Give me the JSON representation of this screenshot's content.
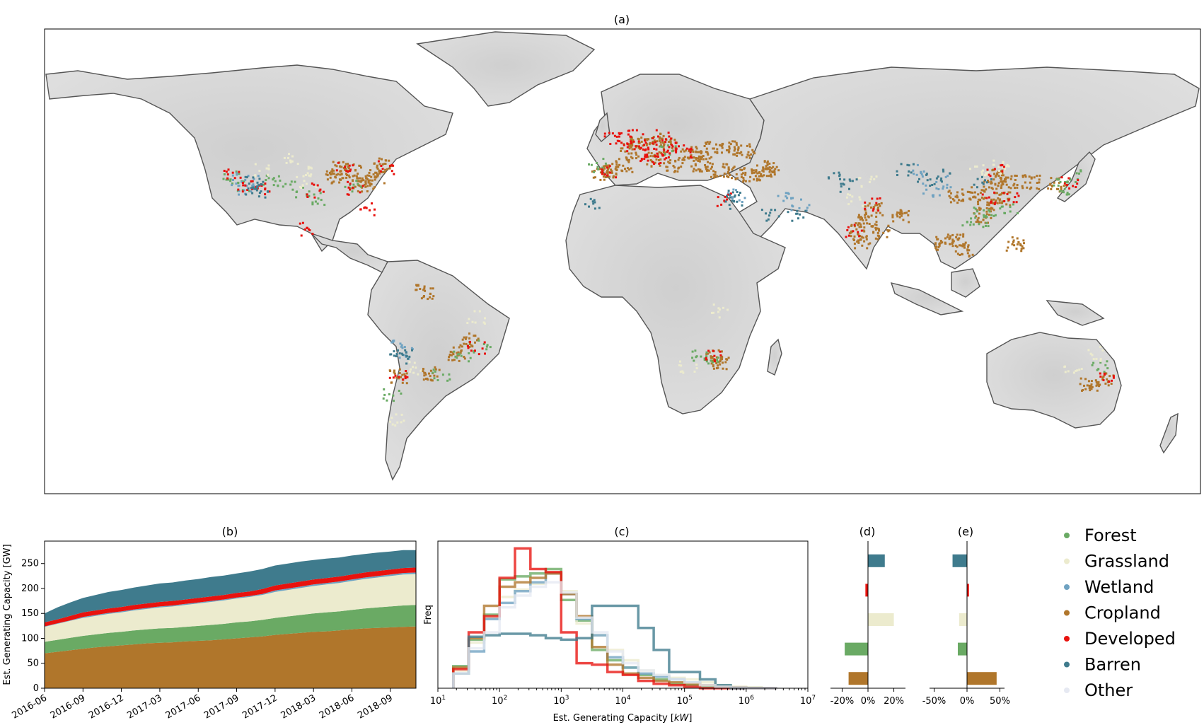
{
  "chart_data": [
    {
      "id": "a",
      "type": "map",
      "title": "(a)",
      "legend_ref": "legend",
      "region_points": {
        "Cropland": [
          [
            -77,
            38
          ],
          [
            -80,
            36
          ],
          [
            -84,
            40
          ],
          [
            -88,
            41
          ],
          [
            -75,
            42
          ],
          [
            -82,
            35
          ],
          [
            -90,
            38
          ],
          [
            2,
            47
          ],
          [
            5,
            50
          ],
          [
            10,
            51
          ],
          [
            14,
            49
          ],
          [
            20,
            46
          ],
          [
            25,
            45
          ],
          [
            0,
            42
          ],
          [
            -4,
            40
          ],
          [
            -7,
            39
          ],
          [
            10,
            44
          ],
          [
            16,
            42
          ],
          [
            24,
            42
          ],
          [
            30,
            40
          ],
          [
            35,
            39
          ],
          [
            40,
            38
          ],
          [
            28,
            48
          ],
          [
            33,
            48
          ],
          [
            38,
            47
          ],
          [
            76,
            22
          ],
          [
            78,
            26
          ],
          [
            80,
            18
          ],
          [
            74,
            15
          ],
          [
            86,
            24
          ],
          [
            73,
            19
          ],
          [
            115,
            34
          ],
          [
            113,
            28
          ],
          [
            118,
            30
          ],
          [
            110,
            32
          ],
          [
            112,
            24
          ],
          [
            120,
            36
          ],
          [
            117,
            38
          ],
          [
            104,
            31
          ],
          [
            100,
            14
          ],
          [
            103,
            15
          ],
          [
            106,
            12
          ],
          [
            122,
            14
          ],
          [
            127,
            36
          ],
          [
            135,
            35
          ],
          [
            -48,
            -20
          ],
          [
            -52,
            -25
          ],
          [
            -60,
            -32
          ],
          [
            -70,
            -33
          ],
          [
            28,
            -26
          ],
          [
            30,
            -28
          ],
          [
            145,
            -36
          ],
          [
            150,
            -34
          ],
          [
            -62,
            -3
          ],
          [
            46,
            41
          ],
          [
            44,
            40
          ]
        ],
        "Forest": [
          [
            -122,
            38
          ],
          [
            -118,
            34
          ],
          [
            -110,
            36
          ],
          [
            -105,
            35
          ],
          [
            -100,
            32
          ],
          [
            -95,
            30
          ],
          [
            -84,
            35
          ],
          [
            137,
            36
          ],
          [
            140,
            38
          ],
          [
            136,
            34
          ],
          [
            112,
            26
          ],
          [
            114,
            22
          ],
          [
            108,
            22
          ],
          [
            120,
            27
          ],
          [
            14,
            47
          ],
          [
            -8,
            42
          ],
          [
            27,
            -28
          ],
          [
            24,
            -26
          ],
          [
            -44,
            -22
          ],
          [
            -50,
            -26
          ],
          [
            148,
            -30
          ],
          [
            -57,
            -33
          ],
          [
            -72,
            -40
          ]
        ],
        "Grassland": [
          [
            -100,
            40
          ],
          [
            -104,
            44
          ],
          [
            -98,
            36
          ],
          [
            -112,
            40
          ],
          [
            115,
            40
          ],
          [
            118,
            42
          ],
          [
            110,
            40
          ],
          [
            76,
            36
          ],
          [
            72,
            30
          ],
          [
            -64,
            -30
          ],
          [
            -70,
            -48
          ],
          [
            20,
            -30
          ],
          [
            140,
            -30
          ],
          [
            147,
            -25
          ],
          [
            30,
            -10
          ],
          [
            -46,
            -12
          ]
        ],
        "Wetland": [
          [
            -115,
            36
          ],
          [
            -120,
            37
          ],
          [
            -118,
            34
          ],
          [
            100,
            36
          ],
          [
            96,
            33
          ],
          [
            92,
            40
          ],
          [
            -70,
            -22
          ],
          [
            -68,
            -25
          ],
          [
            35,
            31
          ],
          [
            55,
            28
          ],
          [
            50,
            30
          ]
        ],
        "Developed": [
          [
            -74,
            41
          ],
          [
            -87,
            42
          ],
          [
            -122,
            38
          ],
          [
            -118,
            34
          ],
          [
            -96,
            33
          ],
          [
            -80,
            26
          ],
          [
            -84,
            34
          ],
          [
            2,
            49
          ],
          [
            8,
            50
          ],
          [
            12,
            52
          ],
          [
            -3,
            52
          ],
          [
            0,
            51
          ],
          [
            6,
            46
          ],
          [
            14,
            46
          ],
          [
            16,
            48
          ],
          [
            19,
            47
          ],
          [
            4,
            52
          ],
          [
            9,
            46
          ],
          [
            12,
            45
          ],
          [
            -4,
            40
          ],
          [
            139,
            36
          ],
          [
            121,
            31
          ],
          [
            114,
            30
          ],
          [
            116,
            40
          ],
          [
            78,
            28
          ],
          [
            72,
            19
          ],
          [
            28,
            -26
          ],
          [
            -70,
            -33
          ],
          [
            -46,
            -23
          ],
          [
            31,
            30
          ],
          [
            151,
            -34
          ],
          [
            -99,
            19
          ],
          [
            -112,
            34
          ]
        ],
        "Barren": [
          [
            -115,
            34
          ],
          [
            -112,
            33
          ],
          [
            -116,
            36
          ],
          [
            34,
            31
          ],
          [
            35,
            29
          ],
          [
            88,
            40
          ],
          [
            94,
            37
          ],
          [
            100,
            38
          ],
          [
            112,
            36
          ],
          [
            54,
            24
          ],
          [
            46,
            24
          ],
          [
            -70,
            -24
          ],
          [
            -68,
            -26
          ],
          [
            -10,
            28
          ],
          [
            70,
            35
          ],
          [
            66,
            37
          ]
        ]
      }
    },
    {
      "id": "b",
      "type": "area",
      "title": "(b)",
      "ylabel": "Est. Generating Capacity [GW]",
      "xlabel": "",
      "x_ticks": [
        "2016-06",
        "2016-09",
        "2016-12",
        "2017-03",
        "2017-06",
        "2017-09",
        "2017-12",
        "2018-03",
        "2018-06",
        "2018-09"
      ],
      "x_months": [
        0,
        3,
        6,
        9,
        12,
        15,
        18,
        21,
        24,
        27
      ],
      "xlim_months": [
        0,
        29
      ],
      "ylim": [
        0,
        295
      ],
      "y_ticks": [
        0,
        50,
        100,
        150,
        200,
        250
      ],
      "x": [
        0,
        1,
        2,
        3,
        4,
        5,
        6,
        7,
        8,
        9,
        10,
        11,
        12,
        13,
        14,
        15,
        16,
        17,
        18,
        19,
        20,
        21,
        22,
        23,
        24,
        25,
        26,
        27,
        28,
        29
      ],
      "series": [
        {
          "name": "Cropland",
          "values": [
            70,
            73,
            76,
            79,
            82,
            84,
            86,
            88,
            90,
            91,
            92,
            94,
            95,
            96,
            98,
            100,
            102,
            104,
            107,
            109,
            111,
            113,
            114,
            116,
            118,
            120,
            121,
            122,
            123,
            124
          ]
        },
        {
          "name": "Forest",
          "values": [
            23,
            24,
            25,
            26,
            26,
            27,
            27,
            28,
            28,
            29,
            29,
            29,
            30,
            31,
            31,
            32,
            32,
            33,
            34,
            35,
            36,
            37,
            38,
            38,
            39,
            40,
            41,
            42,
            43,
            43
          ]
        },
        {
          "name": "Grassland",
          "values": [
            30,
            32,
            34,
            36,
            37,
            38,
            39,
            40,
            41,
            42,
            43,
            44,
            45,
            46,
            47,
            48,
            49,
            50,
            52,
            53,
            54,
            55,
            56,
            57,
            58,
            59,
            60,
            61,
            62,
            62
          ]
        },
        {
          "name": "Wetland",
          "values": [
            1,
            1,
            1,
            2,
            2,
            2,
            2,
            2,
            2,
            2,
            2,
            2,
            2,
            2,
            2,
            2,
            2,
            2,
            3,
            3,
            3,
            3,
            3,
            3,
            3,
            3,
            3,
            3,
            3,
            3
          ]
        },
        {
          "name": "Developed",
          "values": [
            8,
            8,
            9,
            9,
            9,
            9,
            9,
            9,
            9,
            9,
            9,
            9,
            9,
            9,
            9,
            9,
            9,
            10,
            10,
            10,
            10,
            10,
            10,
            10,
            10,
            10,
            10,
            10,
            10,
            10
          ]
        },
        {
          "name": "Barren",
          "values": [
            18,
            24,
            27,
            29,
            31,
            33,
            34,
            35,
            36,
            37,
            37,
            38,
            38,
            39,
            39,
            39,
            40,
            40,
            40,
            40,
            40,
            39,
            39,
            38,
            38,
            37,
            37,
            36,
            36,
            35
          ]
        }
      ]
    },
    {
      "id": "c",
      "type": "histogram",
      "title": "(c)",
      "ylabel": "Freq",
      "xlabel": "Est. Generating Capacity [",
      "xlabel_unit": "kW",
      "xlabel_end": "]",
      "xscale": "log",
      "xlim_exp": [
        1,
        7
      ],
      "x_tick_exps": [
        "1",
        "2",
        "3",
        "4",
        "5",
        "6",
        "7"
      ],
      "x_tick_base": "10",
      "bins_exp": [
        1.25,
        1.5,
        1.75,
        2.0,
        2.25,
        2.5,
        2.75,
        3.0,
        3.25,
        3.5,
        3.75,
        4.0,
        4.25,
        4.5,
        4.75,
        5.0,
        5.25,
        5.5,
        5.75,
        6.0,
        6.25,
        6.5
      ],
      "ylim": [
        0,
        1.0
      ],
      "series": [
        {
          "name": "Forest",
          "values": [
            0.15,
            0.33,
            0.5,
            0.74,
            0.76,
            0.78,
            0.81,
            0.6,
            0.46,
            0.26,
            0.19,
            0.14,
            0.09,
            0.06,
            0.03,
            0.02,
            0.015,
            0.01,
            0.005,
            0.003,
            0.0
          ]
        },
        {
          "name": "Grassland",
          "values": [
            0.12,
            0.31,
            0.48,
            0.62,
            0.67,
            0.71,
            0.78,
            0.66,
            0.44,
            0.36,
            0.26,
            0.19,
            0.12,
            0.09,
            0.07,
            0.06,
            0.04,
            0.02,
            0.01,
            0.005,
            0.0
          ]
        },
        {
          "name": "Wetland",
          "values": [
            0.1,
            0.25,
            0.47,
            0.58,
            0.66,
            0.72,
            0.78,
            0.64,
            0.47,
            0.36,
            0.21,
            0.14,
            0.1,
            0.08,
            0.06,
            0.04,
            0.02,
            0.01,
            0.005,
            0.0,
            0.0
          ]
        },
        {
          "name": "Cropland",
          "values": [
            0.14,
            0.34,
            0.56,
            0.69,
            0.72,
            0.75,
            0.78,
            0.64,
            0.49,
            0.28,
            0.16,
            0.1,
            0.07,
            0.05,
            0.04,
            0.03,
            0.02,
            0.01,
            0.005,
            0.0,
            0.0
          ]
        },
        {
          "name": "Developed",
          "values": [
            0.13,
            0.38,
            0.49,
            0.75,
            0.95,
            0.81,
            0.79,
            0.38,
            0.17,
            0.16,
            0.11,
            0.09,
            0.05,
            0.03,
            0.02,
            0.01,
            0.0,
            0.0,
            0.0,
            0.0,
            0.0
          ]
        },
        {
          "name": "Barren",
          "values": [
            0.1,
            0.35,
            0.36,
            0.37,
            0.37,
            0.36,
            0.34,
            0.33,
            0.34,
            0.56,
            0.56,
            0.56,
            0.41,
            0.26,
            0.11,
            0.11,
            0.06,
            0.02,
            0.0,
            0.0,
            0.0
          ]
        },
        {
          "name": "Other",
          "values": [
            0.1,
            0.27,
            0.38,
            0.55,
            0.63,
            0.69,
            0.72,
            0.65,
            0.48,
            0.38,
            0.25,
            0.17,
            0.12,
            0.09,
            0.06,
            0.04,
            0.02,
            0.01,
            0.005,
            0.0,
            0.0
          ]
        }
      ]
    },
    {
      "id": "d",
      "type": "bar_horizontal",
      "title": "(d)",
      "categories": [
        "Barren",
        "Developed",
        "Grassland",
        "Forest",
        "Cropland"
      ],
      "values": [
        13,
        -2,
        20,
        -18,
        -15
      ],
      "xlim": [
        -29,
        29
      ],
      "x_ticks": [
        {
          "v": -20,
          "label": "-20%"
        },
        {
          "v": 0,
          "label": "0%"
        },
        {
          "v": 20,
          "label": "20%"
        }
      ]
    },
    {
      "id": "e",
      "type": "bar_horizontal",
      "title": "(e)",
      "categories": [
        "Barren",
        "Developed",
        "Grassland",
        "Forest",
        "Cropland"
      ],
      "values": [
        -22,
        3,
        -12,
        -14,
        45
      ],
      "xlim": [
        -57,
        57
      ],
      "x_ticks": [
        {
          "v": -50,
          "label": "-50%"
        },
        {
          "v": 0,
          "label": "0%"
        },
        {
          "v": 50,
          "label": "50%"
        }
      ]
    }
  ],
  "legend": [
    {
      "name": "Forest",
      "color": "#6aaa64"
    },
    {
      "name": "Grassland",
      "color": "#ecebce"
    },
    {
      "name": "Wetland",
      "color": "#6fa2c1"
    },
    {
      "name": "Cropland",
      "color": "#b0762b"
    },
    {
      "name": "Developed",
      "color": "#e8120e"
    },
    {
      "name": "Barren",
      "color": "#3f7b8d"
    },
    {
      "name": "Other",
      "color": "#e6e9f2"
    }
  ]
}
